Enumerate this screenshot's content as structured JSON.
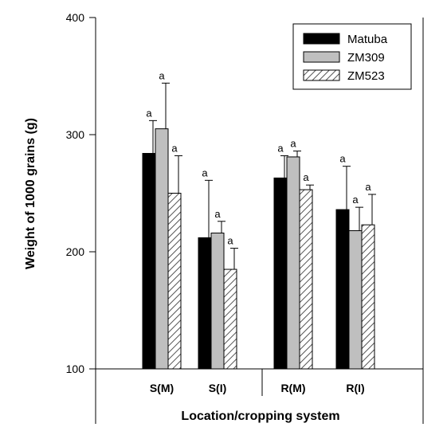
{
  "chart_data": {
    "type": "bar",
    "categories": [
      "S(M)",
      "S(I)",
      "R(M)",
      "R(I)"
    ],
    "xlabel": "Location/cropping system",
    "ylabel": "Weight of 1000 grains (g)",
    "ylim": [
      100,
      400
    ],
    "yticks": [
      "100",
      "200",
      "300",
      "400"
    ],
    "grid": false,
    "legend_position": "top-right",
    "series": [
      {
        "name": "Matuba",
        "fill": "#000000",
        "values": [
          284,
          212,
          263,
          236
        ],
        "errors": [
          28,
          49,
          19,
          37
        ],
        "sig": [
          "a",
          "a",
          "a",
          "a"
        ]
      },
      {
        "name": "ZM309",
        "fill": "#bfbfbf",
        "values": [
          305,
          216,
          281,
          218
        ],
        "errors": [
          39,
          10,
          5,
          20
        ],
        "sig": [
          "a",
          "a",
          "a",
          "a"
        ]
      },
      {
        "name": "ZM523",
        "fill": "hatch",
        "values": [
          250,
          185,
          253,
          223
        ],
        "errors": [
          32,
          18,
          4,
          26
        ],
        "sig": [
          "a",
          "a",
          "a",
          "a"
        ]
      }
    ]
  }
}
